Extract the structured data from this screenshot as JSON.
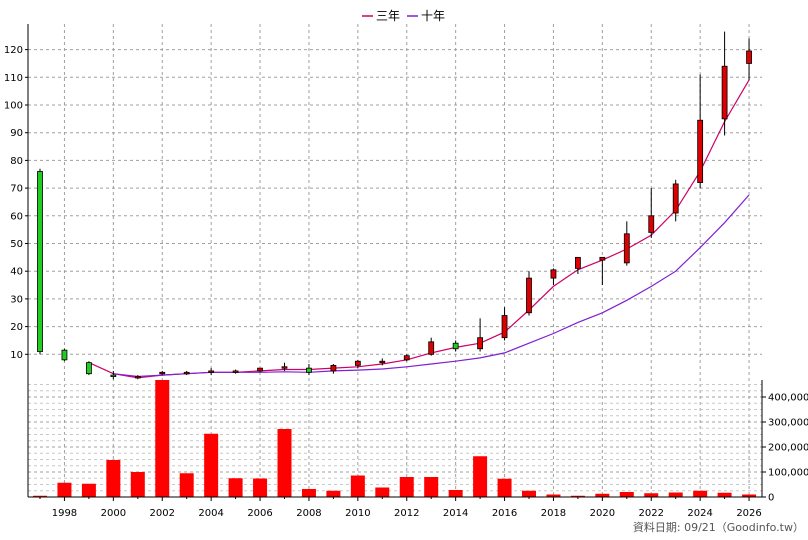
{
  "legend": {
    "items": [
      {
        "label": "三年",
        "color": "#cc0066"
      },
      {
        "label": "十年",
        "color": "#7f1fd6"
      }
    ]
  },
  "source_text": "資料日期: 09/21（Goodinfo.tw）",
  "colors": {
    "up_candle": "#dd0000",
    "down_candle": "#22cc22",
    "volume_bar": "#ff0000",
    "grid": "#a0a0a0"
  },
  "chart_data": [
    {
      "type": "candlestick",
      "title": "",
      "x_ticks": [
        "1998",
        "2000",
        "2002",
        "2004",
        "2006",
        "2008",
        "2010",
        "2012",
        "2014",
        "2016",
        "2018",
        "2020",
        "2022",
        "2024",
        "2026"
      ],
      "y_ticks": [
        10,
        20,
        30,
        40,
        50,
        60,
        70,
        80,
        90,
        100,
        110,
        120
      ],
      "ylim": [
        0,
        129
      ],
      "xlim": [
        1996.5,
        2026.5
      ],
      "grid": true,
      "legend_position": "top-center",
      "candles": [
        {
          "year": 1997,
          "open": 76,
          "high": 77,
          "low": 10,
          "close": 11
        },
        {
          "year": 1998,
          "open": 11.5,
          "high": 12,
          "low": 7.5,
          "close": 8
        },
        {
          "year": 1999,
          "open": 7,
          "high": 7.5,
          "low": 2.5,
          "close": 3
        },
        {
          "year": 2000,
          "open": 2.5,
          "high": 4,
          "low": 1,
          "close": 2
        },
        {
          "year": 2001,
          "open": 1.5,
          "high": 2.5,
          "low": 1,
          "close": 2
        },
        {
          "year": 2002,
          "open": 3,
          "high": 4,
          "low": 2.5,
          "close": 3.5
        },
        {
          "year": 2003,
          "open": 3,
          "high": 4,
          "low": 2.5,
          "close": 3.5
        },
        {
          "year": 2004,
          "open": 3.5,
          "high": 5,
          "low": 2.5,
          "close": 4
        },
        {
          "year": 2005,
          "open": 3.5,
          "high": 4.5,
          "low": 3,
          "close": 4
        },
        {
          "year": 2006,
          "open": 4,
          "high": 5,
          "low": 3.5,
          "close": 5
        },
        {
          "year": 2007,
          "open": 5,
          "high": 7,
          "low": 4,
          "close": 5.5
        },
        {
          "year": 2008,
          "open": 5,
          "high": 6.5,
          "low": 2.5,
          "close": 3.5
        },
        {
          "year": 2009,
          "open": 4,
          "high": 6.5,
          "low": 3,
          "close": 6
        },
        {
          "year": 2010,
          "open": 6,
          "high": 8,
          "low": 5,
          "close": 7.5
        },
        {
          "year": 2011,
          "open": 7,
          "high": 8.5,
          "low": 6,
          "close": 7.5
        },
        {
          "year": 2012,
          "open": 8,
          "high": 10,
          "low": 7.5,
          "close": 9.5
        },
        {
          "year": 2013,
          "open": 10,
          "high": 16,
          "low": 9.5,
          "close": 14.5
        },
        {
          "year": 2014,
          "open": 14,
          "high": 15,
          "low": 11,
          "close": 12
        },
        {
          "year": 2015,
          "open": 12,
          "high": 23,
          "low": 11,
          "close": 16
        },
        {
          "year": 2016,
          "open": 16,
          "high": 27,
          "low": 15,
          "close": 24
        },
        {
          "year": 2017,
          "open": 25,
          "high": 40,
          "low": 24,
          "close": 37.5
        },
        {
          "year": 2018,
          "open": 37.5,
          "high": 41,
          "low": 35,
          "close": 40.5
        },
        {
          "year": 2019,
          "open": 41,
          "high": 45,
          "low": 39,
          "close": 45
        },
        {
          "year": 2020,
          "open": 44,
          "high": 45,
          "low": 35,
          "close": 45
        },
        {
          "year": 2021,
          "open": 43,
          "high": 58,
          "low": 42,
          "close": 53.5
        },
        {
          "year": 2022,
          "open": 54,
          "high": 70,
          "low": 52,
          "close": 60
        },
        {
          "year": 2023,
          "open": 61,
          "high": 73,
          "low": 58,
          "close": 71.5
        },
        {
          "year": 2024,
          "open": 72,
          "high": 111,
          "low": 70,
          "close": 94.5
        },
        {
          "year": 2025,
          "open": 95,
          "high": 126.5,
          "low": 89,
          "close": 114
        },
        {
          "year": 2026,
          "open": 115,
          "high": 124,
          "low": 109,
          "close": 119.5
        }
      ],
      "series": [
        {
          "name": "三年",
          "color": "#cc0066",
          "points": [
            [
              1999,
              7
            ],
            [
              2000,
              3
            ],
            [
              2001,
              1.5
            ],
            [
              2002,
              2.5
            ],
            [
              2003,
              3
            ],
            [
              2004,
              3.5
            ],
            [
              2005,
              3.5
            ],
            [
              2006,
              4
            ],
            [
              2007,
              4.5
            ],
            [
              2008,
              4.5
            ],
            [
              2009,
              5
            ],
            [
              2010,
              5.5
            ],
            [
              2011,
              6.5
            ],
            [
              2012,
              8
            ],
            [
              2013,
              10.5
            ],
            [
              2014,
              12.5
            ],
            [
              2015,
              14
            ],
            [
              2016,
              18
            ],
            [
              2017,
              26
            ],
            [
              2018,
              34.5
            ],
            [
              2019,
              40.5
            ],
            [
              2020,
              44
            ],
            [
              2021,
              48
            ],
            [
              2022,
              53
            ],
            [
              2023,
              62
            ],
            [
              2024,
              76
            ],
            [
              2025,
              94
            ],
            [
              2026,
              109
            ]
          ]
        },
        {
          "name": "十年",
          "color": "#7f1fd6",
          "points": [
            [
              2000,
              3
            ],
            [
              2001,
              2
            ],
            [
              2002,
              2.5
            ],
            [
              2003,
              3
            ],
            [
              2004,
              3.5
            ],
            [
              2005,
              3.5
            ],
            [
              2006,
              3.5
            ],
            [
              2007,
              3.7
            ],
            [
              2008,
              3.5
            ],
            [
              2009,
              4
            ],
            [
              2010,
              4.3
            ],
            [
              2011,
              4.7
            ],
            [
              2012,
              5.5
            ],
            [
              2013,
              6.5
            ],
            [
              2014,
              7.5
            ],
            [
              2015,
              8.7
            ],
            [
              2016,
              10.5
            ],
            [
              2017,
              14
            ],
            [
              2018,
              17.5
            ],
            [
              2019,
              21.5
            ],
            [
              2020,
              25
            ],
            [
              2021,
              29.5
            ],
            [
              2022,
              34.5
            ],
            [
              2023,
              40
            ],
            [
              2024,
              48.5
            ],
            [
              2025,
              57.5
            ],
            [
              2026,
              67.5
            ]
          ]
        }
      ]
    },
    {
      "type": "bar",
      "title": "",
      "y_ticks": [
        "0",
        "100,000",
        "200,000",
        "300,000",
        "400,000"
      ],
      "y_tick_values": [
        0,
        100000,
        200000,
        300000,
        400000
      ],
      "ylim": [
        0,
        460000
      ],
      "grid": true,
      "categories": [
        1997,
        1998,
        1999,
        2000,
        2001,
        2002,
        2003,
        2004,
        2005,
        2006,
        2007,
        2008,
        2009,
        2010,
        2011,
        2012,
        2013,
        2014,
        2015,
        2016,
        2017,
        2018,
        2019,
        2020,
        2021,
        2022,
        2023,
        2024,
        2025,
        2026
      ],
      "values": [
        5000,
        57000,
        53000,
        148000,
        100000,
        470000,
        95000,
        253000,
        75000,
        74000,
        272000,
        32000,
        25000,
        86000,
        38000,
        80000,
        80000,
        28000,
        163000,
        73000,
        25000,
        10000,
        5000,
        13000,
        20000,
        15000,
        18000,
        25000,
        17000,
        10000
      ]
    }
  ]
}
